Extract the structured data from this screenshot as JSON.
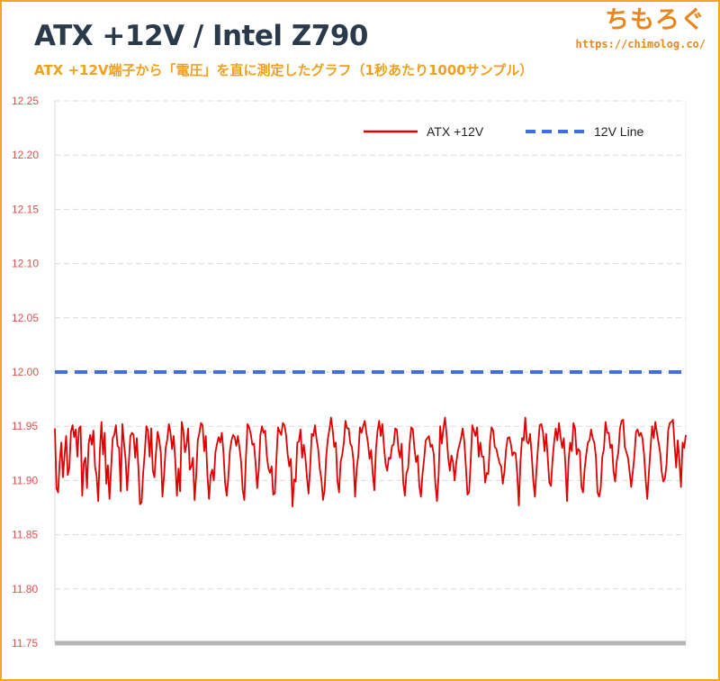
{
  "header": {
    "title": "ATX +12V / Intel Z790",
    "subtitle": "ATX +12V端子から「電圧」を直に測定したグラフ（1秒あたり1000サンプル）"
  },
  "brand": {
    "name": "ちもろぐ",
    "url": "https://chimolog.co/"
  },
  "colors": {
    "series_main": "#e00000",
    "reference_line": "#3f6fe0",
    "tick_text": "#d9534f",
    "border": "#f5a623",
    "grid": "#d9d9d9",
    "baseline": "#b5b5b5"
  },
  "chart_data": {
    "type": "line",
    "title": "ATX +12V / Intel Z790",
    "subtitle": "ATX +12V端子から「電圧」を直に測定したグラフ（1秒あたり1000サンプル）",
    "xlabel": "",
    "ylabel": "",
    "ylim": [
      11.75,
      12.25
    ],
    "yticks": [
      "12.25",
      "12.20",
      "12.15",
      "12.10",
      "12.05",
      "12.00",
      "11.95",
      "11.90",
      "11.85",
      "11.80",
      "11.75"
    ],
    "grid": true,
    "legend_position": "top-right",
    "series": [
      {
        "name": "ATX +12V",
        "style": "solid",
        "color": "#e00000",
        "values": [
          11.948,
          11.893,
          11.889,
          11.917,
          11.935,
          11.903,
          11.923,
          11.941,
          11.905,
          11.912,
          11.945,
          11.951,
          11.94,
          11.947,
          11.922,
          11.948,
          11.95,
          11.886,
          11.916,
          11.921,
          11.893,
          11.934,
          11.942,
          11.933,
          11.946,
          11.913,
          11.904,
          11.881,
          11.927,
          11.954,
          11.924,
          11.944,
          11.897,
          11.914,
          11.883,
          11.911,
          11.939,
          11.942,
          11.951,
          11.932,
          11.93,
          11.89,
          11.952,
          11.935,
          11.92,
          11.891,
          11.915,
          11.941,
          11.944,
          11.942,
          11.921,
          11.939,
          11.912,
          11.878,
          11.88,
          11.907,
          11.926,
          11.95,
          11.946,
          11.922,
          11.948,
          11.909,
          11.903,
          11.926,
          11.945,
          11.937,
          11.925,
          11.885,
          11.905,
          11.93,
          11.938,
          11.952,
          11.944,
          11.929,
          11.941,
          11.918,
          11.886,
          11.911,
          11.89,
          11.954,
          11.946,
          11.926,
          11.933,
          11.948,
          11.91,
          11.913,
          11.921,
          11.882,
          11.904,
          11.937,
          11.944,
          11.953,
          11.951,
          11.927,
          11.941,
          11.905,
          11.883,
          11.905,
          11.91,
          11.9,
          11.926,
          11.934,
          11.94,
          11.935,
          11.944,
          11.926,
          11.898,
          11.886,
          11.902,
          11.927,
          11.937,
          11.942,
          11.94,
          11.932,
          11.941,
          11.93,
          11.917,
          11.891,
          11.882,
          11.921,
          11.952,
          11.949,
          11.943,
          11.933,
          11.934,
          11.916,
          11.893,
          11.91,
          11.942,
          11.95,
          11.944,
          11.946,
          11.923,
          11.911,
          11.907,
          11.913,
          11.887,
          11.888,
          11.92,
          11.949,
          11.945,
          11.942,
          11.953,
          11.951,
          11.942,
          11.924,
          11.913,
          11.92,
          11.876,
          11.901,
          11.899,
          11.935,
          11.936,
          11.947,
          11.921,
          11.933,
          11.922,
          11.903,
          11.888,
          11.912,
          11.943,
          11.941,
          11.951,
          11.938,
          11.929,
          11.911,
          11.901,
          11.882,
          11.891,
          11.922,
          11.938,
          11.947,
          11.958,
          11.947,
          11.931,
          11.935,
          11.9,
          11.889,
          11.917,
          11.924,
          11.935,
          11.955,
          11.948,
          11.948,
          11.934,
          11.931,
          11.918,
          11.885,
          11.911,
          11.923,
          11.949,
          11.944,
          11.95,
          11.955,
          11.944,
          11.935,
          11.92,
          11.928,
          11.906,
          11.891,
          11.929,
          11.946,
          11.955,
          11.941,
          11.952,
          11.931,
          11.915,
          11.909,
          11.921,
          11.92,
          11.932,
          11.933,
          11.948,
          11.947,
          11.929,
          11.921,
          11.934,
          11.898,
          11.886,
          11.907,
          11.911,
          11.934,
          11.949,
          11.947,
          11.929,
          11.917,
          11.923,
          11.895,
          11.885,
          11.906,
          11.92,
          11.937,
          11.939,
          11.941,
          11.931,
          11.933,
          11.924,
          11.897,
          11.881,
          11.904,
          11.95,
          11.934,
          11.948,
          11.958,
          11.942,
          11.921,
          11.909,
          11.923,
          11.917,
          11.9,
          11.916,
          11.927,
          11.933,
          11.939,
          11.948,
          11.937,
          11.913,
          11.887,
          11.889,
          11.917,
          11.951,
          11.946,
          11.941,
          11.949,
          11.922,
          11.935,
          11.922,
          11.922,
          11.898,
          11.907,
          11.906,
          11.935,
          11.949,
          11.946,
          11.931,
          11.929,
          11.922,
          11.916,
          11.913,
          11.897,
          11.908,
          11.928,
          11.939,
          11.94,
          11.934,
          11.923,
          11.926,
          11.925,
          11.906,
          11.877,
          11.917,
          11.939,
          11.937,
          11.958,
          11.936,
          11.934,
          11.943,
          11.924,
          11.9,
          11.885,
          11.91,
          11.932,
          11.951,
          11.952,
          11.945,
          11.927,
          11.943,
          11.921,
          11.898,
          11.895,
          11.919,
          11.936,
          11.948,
          11.937,
          11.953,
          11.94,
          11.93,
          11.939,
          11.915,
          11.881,
          11.919,
          11.935,
          11.927,
          11.953,
          11.948,
          11.924,
          11.929,
          11.927,
          11.894,
          11.889,
          11.911,
          11.924,
          11.935,
          11.937,
          11.947,
          11.939,
          11.935,
          11.922,
          11.889,
          11.885,
          11.893,
          11.922,
          11.929,
          11.954,
          11.944,
          11.944,
          11.93,
          11.933,
          11.908,
          11.899,
          11.918,
          11.926,
          11.948,
          11.955,
          11.956,
          11.931,
          11.926,
          11.921,
          11.908,
          11.894,
          11.908,
          11.923,
          11.945,
          11.947,
          11.941,
          11.944,
          11.939,
          11.924,
          11.901,
          11.883,
          11.907,
          11.929,
          11.95,
          11.939,
          11.954,
          11.944,
          11.935,
          11.926,
          11.908,
          11.899,
          11.902,
          11.915,
          11.946,
          11.953,
          11.954,
          11.956,
          11.933,
          11.912,
          11.937,
          11.919,
          11.894,
          11.935,
          11.93,
          11.942
        ]
      },
      {
        "name": "12V Line",
        "style": "dashed",
        "color": "#3f6fe0",
        "values": [
          12.0,
          12.0
        ]
      }
    ]
  }
}
